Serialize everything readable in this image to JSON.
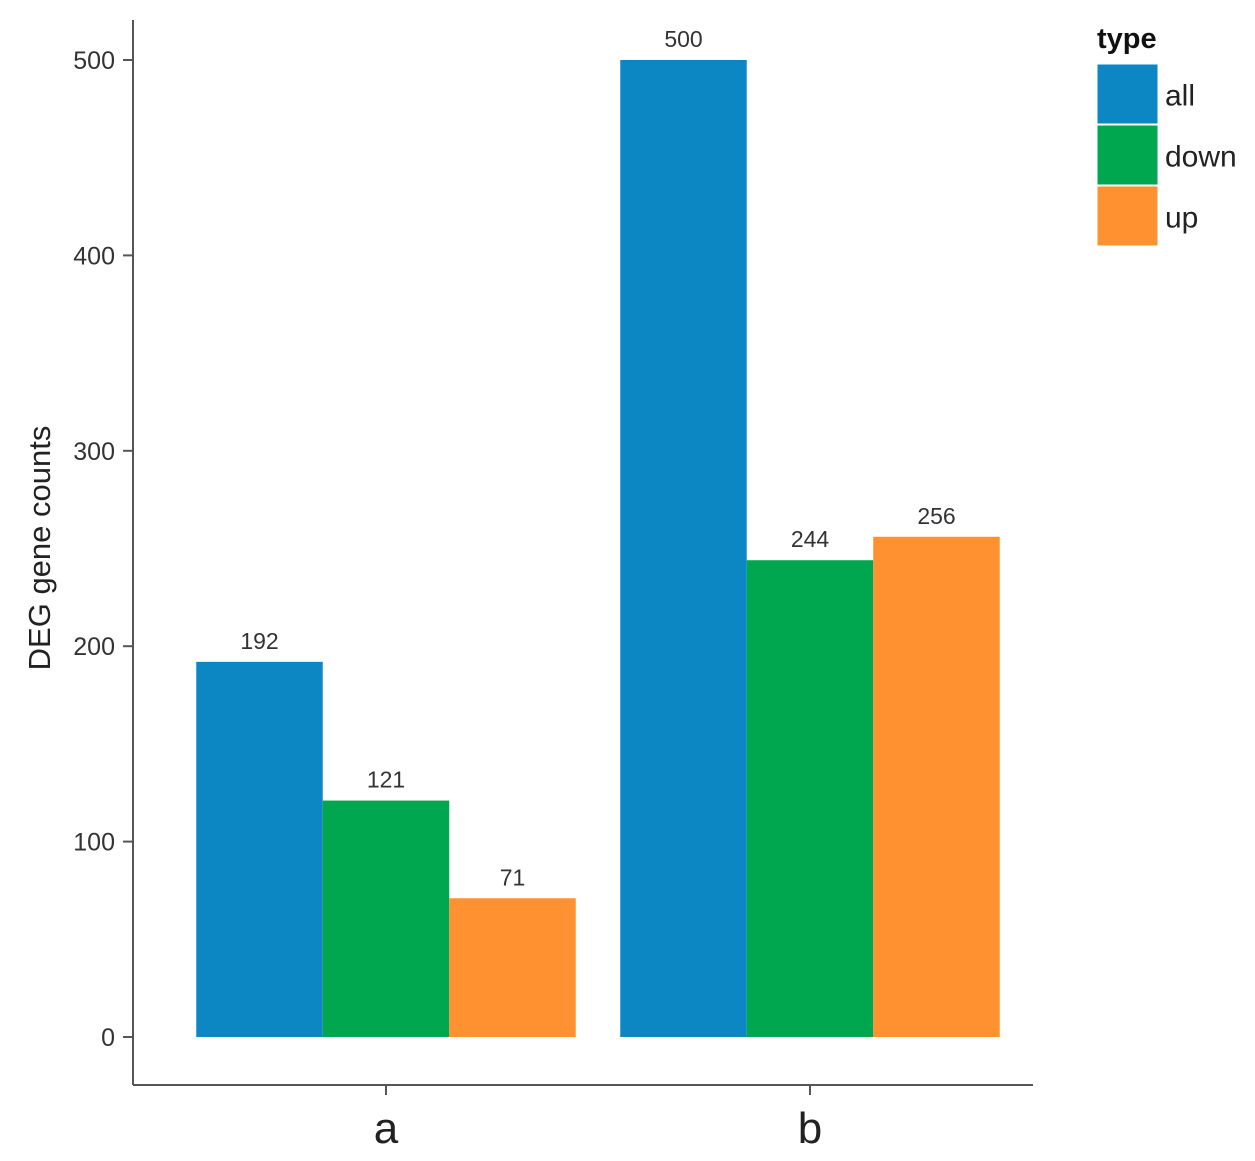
{
  "chart_data": {
    "type": "bar",
    "title": "",
    "xlabel": "",
    "ylabel": "DEG gene counts",
    "categories": [
      "a",
      "b"
    ],
    "series": [
      {
        "name": "all",
        "color": "#0d87c4",
        "values": [
          192,
          500
        ]
      },
      {
        "name": "down",
        "color": "#00a74f",
        "values": [
          121,
          244
        ]
      },
      {
        "name": "up",
        "color": "#ff9130",
        "values": [
          71,
          256
        ]
      }
    ],
    "yticks": [
      0,
      100,
      200,
      300,
      400,
      500
    ],
    "ylim": [
      0,
      500
    ],
    "grid": false,
    "legend": {
      "title": "type",
      "placement": "right"
    }
  }
}
